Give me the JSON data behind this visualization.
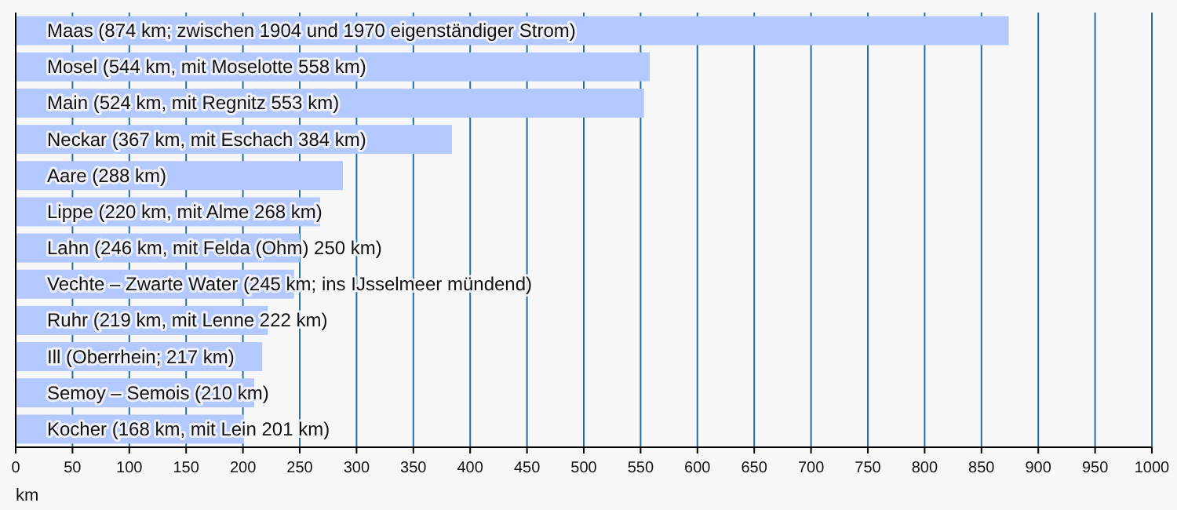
{
  "chart_data": {
    "type": "bar",
    "orientation": "horizontal",
    "xlabel": "km",
    "categories": [
      "Maas (874 km; zwischen 1904 und 1970 eigenständiger Strom)",
      "Mosel (544 km, mit Moselotte 558 km)",
      "Main (524 km, mit Regnitz 553 km)",
      "Neckar (367 km, mit Eschach 384 km)",
      "Aare (288 km)",
      "Lippe (220 km, mit Alme 268 km)",
      "Lahn (246 km, mit Felda (Ohm) 250 km)",
      "Vechte – Zwarte Water (245 km; ins IJsselmeer mündend)",
      "Ruhr (219 km, mit Lenne 222 km)",
      "Ill (Oberrhein; 217 km)",
      "Semoy – Semois (210 km)",
      "Kocher (168 km, mit Lein 201 km)"
    ],
    "values": [
      874,
      558,
      553,
      384,
      288,
      268,
      250,
      245,
      222,
      217,
      210,
      201
    ],
    "color": "#b3c8fc",
    "xlim": [
      0,
      1000
    ],
    "xticks": [
      0,
      50,
      100,
      150,
      200,
      250,
      300,
      350,
      400,
      450,
      500,
      550,
      600,
      650,
      700,
      750,
      800,
      850,
      900,
      950,
      1000
    ],
    "grid": "x"
  }
}
